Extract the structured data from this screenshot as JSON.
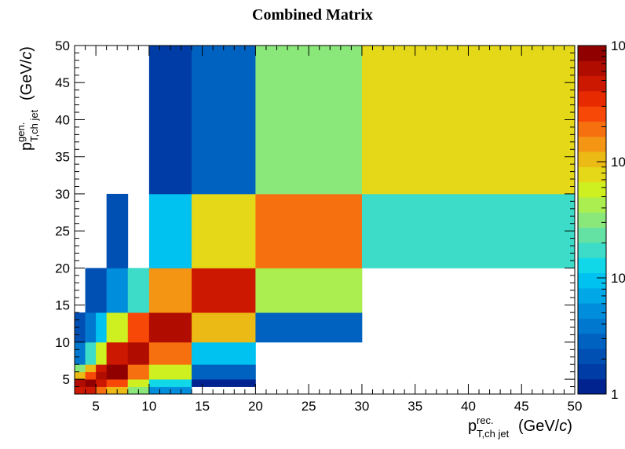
{
  "chart_data": {
    "type": "heatmap",
    "title": "Combined Matrix",
    "x_label": {
      "main": "p",
      "sup": "rec.",
      "sub": "T,ch jet",
      "unit": "(GeV/",
      "unit_italic": "c",
      "unit_end": ")"
    },
    "y_label": {
      "main": "p",
      "sup": "gen.",
      "sub": "T,ch jet",
      "unit": "(GeV/",
      "unit_italic": "c",
      "unit_end": ")"
    },
    "xlim": [
      3,
      50
    ],
    "ylim": [
      3,
      50
    ],
    "x_ticks": [
      5,
      10,
      15,
      20,
      25,
      30,
      35,
      40,
      45,
      50
    ],
    "y_ticks": [
      5,
      10,
      15,
      20,
      25,
      30,
      35,
      40,
      45,
      50
    ],
    "z_scale": "log",
    "colorbar_tick_labels": [
      "1",
      "10",
      "10",
      "10"
    ],
    "palette": [
      "#00238f",
      "#003ca5",
      "#0050b4",
      "#0062c0",
      "#0078d0",
      "#008ddb",
      "#00a8e8",
      "#00c2f0",
      "#10d8e8",
      "#3cdcc8",
      "#64e2a4",
      "#8ae87a",
      "#aaee50",
      "#cef020",
      "#e4d818",
      "#ecba14",
      "#f49614",
      "#f77010",
      "#f84808",
      "#e82a00",
      "#cc1800",
      "#b00c00",
      "#900000"
    ],
    "cells": [
      {
        "x0": 3,
        "x1": 4,
        "y0": 3,
        "y1": 4,
        "c": "#cc1800"
      },
      {
        "x0": 4,
        "x1": 5,
        "y0": 3,
        "y1": 4,
        "c": "#cc1800"
      },
      {
        "x0": 5,
        "x1": 6,
        "y0": 3,
        "y1": 4,
        "c": "#f77010"
      },
      {
        "x0": 6,
        "x1": 8,
        "y0": 3,
        "y1": 4,
        "c": "#ecba14"
      },
      {
        "x0": 8,
        "x1": 10,
        "y0": 3,
        "y1": 4,
        "c": "#8ae87a"
      },
      {
        "x0": 10,
        "x1": 14,
        "y0": 3,
        "y1": 4,
        "c": "#008ddb"
      },
      {
        "x0": 3,
        "x1": 4,
        "y0": 4,
        "y1": 5,
        "c": "#b00c00"
      },
      {
        "x0": 4,
        "x1": 5,
        "y0": 4,
        "y1": 5,
        "c": "#900000"
      },
      {
        "x0": 5,
        "x1": 6,
        "y0": 4,
        "y1": 5,
        "c": "#cc1800"
      },
      {
        "x0": 6,
        "x1": 8,
        "y0": 4,
        "y1": 5,
        "c": "#f84808"
      },
      {
        "x0": 8,
        "x1": 10,
        "y0": 4,
        "y1": 5,
        "c": "#cef020"
      },
      {
        "x0": 10,
        "x1": 14,
        "y0": 4,
        "y1": 5,
        "c": "#10d8e8"
      },
      {
        "x0": 14,
        "x1": 20,
        "y0": 4,
        "y1": 5,
        "c": "#00238f"
      },
      {
        "x0": 3,
        "x1": 4,
        "y0": 5,
        "y1": 6,
        "c": "#ecba14"
      },
      {
        "x0": 4,
        "x1": 5,
        "y0": 5,
        "y1": 6,
        "c": "#f84808"
      },
      {
        "x0": 5,
        "x1": 6,
        "y0": 5,
        "y1": 6,
        "c": "#b00c00"
      },
      {
        "x0": 6,
        "x1": 8,
        "y0": 5,
        "y1": 6,
        "c": "#900000"
      },
      {
        "x0": 8,
        "x1": 10,
        "y0": 5,
        "y1": 6,
        "c": "#f77010"
      },
      {
        "x0": 10,
        "x1": 14,
        "y0": 5,
        "y1": 6,
        "c": "#cef020"
      },
      {
        "x0": 14,
        "x1": 20,
        "y0": 5,
        "y1": 6,
        "c": "#0062c0"
      },
      {
        "x0": 3,
        "x1": 4,
        "y0": 6,
        "y1": 7,
        "c": "#8ae87a"
      },
      {
        "x0": 4,
        "x1": 5,
        "y0": 6,
        "y1": 7,
        "c": "#ecba14"
      },
      {
        "x0": 5,
        "x1": 6,
        "y0": 6,
        "y1": 7,
        "c": "#cc1800"
      },
      {
        "x0": 6,
        "x1": 8,
        "y0": 6,
        "y1": 7,
        "c": "#900000"
      },
      {
        "x0": 8,
        "x1": 10,
        "y0": 6,
        "y1": 7,
        "c": "#f77010"
      },
      {
        "x0": 10,
        "x1": 14,
        "y0": 6,
        "y1": 7,
        "c": "#cef020"
      },
      {
        "x0": 14,
        "x1": 20,
        "y0": 6,
        "y1": 7,
        "c": "#0062c0"
      },
      {
        "x0": 3,
        "x1": 4,
        "y0": 7,
        "y1": 8,
        "c": "#0078d0"
      },
      {
        "x0": 4,
        "x1": 5,
        "y0": 7,
        "y1": 8,
        "c": "#3cdcc8"
      },
      {
        "x0": 5,
        "x1": 6,
        "y0": 7,
        "y1": 8,
        "c": "#cef020"
      },
      {
        "x0": 6,
        "x1": 8,
        "y0": 7,
        "y1": 8,
        "c": "#cc1800"
      },
      {
        "x0": 8,
        "x1": 10,
        "y0": 7,
        "y1": 8,
        "c": "#b00c00"
      },
      {
        "x0": 10,
        "x1": 14,
        "y0": 7,
        "y1": 8,
        "c": "#f77010"
      },
      {
        "x0": 14,
        "x1": 20,
        "y0": 7,
        "y1": 8,
        "c": "#00c2f0"
      },
      {
        "x0": 3,
        "x1": 4,
        "y0": 8,
        "y1": 10,
        "c": "#0078d0"
      },
      {
        "x0": 4,
        "x1": 5,
        "y0": 8,
        "y1": 10,
        "c": "#3cdcc8"
      },
      {
        "x0": 5,
        "x1": 6,
        "y0": 8,
        "y1": 10,
        "c": "#cef020"
      },
      {
        "x0": 6,
        "x1": 8,
        "y0": 8,
        "y1": 10,
        "c": "#cc1800"
      },
      {
        "x0": 8,
        "x1": 10,
        "y0": 8,
        "y1": 10,
        "c": "#b00c00"
      },
      {
        "x0": 10,
        "x1": 14,
        "y0": 8,
        "y1": 10,
        "c": "#f77010"
      },
      {
        "x0": 14,
        "x1": 20,
        "y0": 8,
        "y1": 10,
        "c": "#00c2f0"
      },
      {
        "x0": 3,
        "x1": 4,
        "y0": 10,
        "y1": 14,
        "c": "#0050b4"
      },
      {
        "x0": 4,
        "x1": 5,
        "y0": 10,
        "y1": 14,
        "c": "#0078d0"
      },
      {
        "x0": 5,
        "x1": 6,
        "y0": 10,
        "y1": 14,
        "c": "#00c2f0"
      },
      {
        "x0": 6,
        "x1": 8,
        "y0": 10,
        "y1": 14,
        "c": "#cef020"
      },
      {
        "x0": 8,
        "x1": 10,
        "y0": 10,
        "y1": 14,
        "c": "#f84808"
      },
      {
        "x0": 10,
        "x1": 14,
        "y0": 10,
        "y1": 14,
        "c": "#b00c00"
      },
      {
        "x0": 14,
        "x1": 20,
        "y0": 10,
        "y1": 14,
        "c": "#ecba14"
      },
      {
        "x0": 20,
        "x1": 30,
        "y0": 10,
        "y1": 14,
        "c": "#0062c0"
      },
      {
        "x0": 4,
        "x1": 6,
        "y0": 14,
        "y1": 20,
        "c": "#0050b4"
      },
      {
        "x0": 6,
        "x1": 8,
        "y0": 14,
        "y1": 20,
        "c": "#008ddb"
      },
      {
        "x0": 8,
        "x1": 10,
        "y0": 14,
        "y1": 20,
        "c": "#3cdcc8"
      },
      {
        "x0": 10,
        "x1": 14,
        "y0": 14,
        "y1": 20,
        "c": "#f49614"
      },
      {
        "x0": 14,
        "x1": 20,
        "y0": 14,
        "y1": 20,
        "c": "#cc1800"
      },
      {
        "x0": 20,
        "x1": 30,
        "y0": 14,
        "y1": 20,
        "c": "#aaee50"
      },
      {
        "x0": 6,
        "x1": 8,
        "y0": 20,
        "y1": 30,
        "c": "#0050b4"
      },
      {
        "x0": 10,
        "x1": 14,
        "y0": 20,
        "y1": 30,
        "c": "#00c2f0"
      },
      {
        "x0": 14,
        "x1": 20,
        "y0": 20,
        "y1": 30,
        "c": "#e4d818"
      },
      {
        "x0": 20,
        "x1": 30,
        "y0": 20,
        "y1": 30,
        "c": "#f77010"
      },
      {
        "x0": 30,
        "x1": 50,
        "y0": 20,
        "y1": 30,
        "c": "#3cdcc8"
      },
      {
        "x0": 10,
        "x1": 14,
        "y0": 30,
        "y1": 50,
        "c": "#003ca5"
      },
      {
        "x0": 14,
        "x1": 20,
        "y0": 30,
        "y1": 50,
        "c": "#0062c0"
      },
      {
        "x0": 20,
        "x1": 30,
        "y0": 30,
        "y1": 50,
        "c": "#8ae87a"
      },
      {
        "x0": 30,
        "x1": 50,
        "y0": 30,
        "y1": 50,
        "c": "#e4d818"
      }
    ]
  }
}
